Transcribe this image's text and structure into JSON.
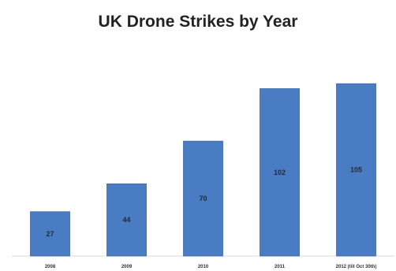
{
  "chart_data": {
    "type": "bar",
    "title": "UK Drone Strikes by Year",
    "categories": [
      "2008",
      "2009",
      "2010",
      "2011",
      "2012 (till Oct 30th)"
    ],
    "values": [
      27,
      44,
      70,
      102,
      105
    ],
    "xlabel": "",
    "ylabel": "",
    "ylim": [
      0,
      120
    ],
    "grid": false,
    "legend": "none",
    "bar_color": "#4a7cc4",
    "bar_border_color": "#3b67a6",
    "data_labels": true
  }
}
